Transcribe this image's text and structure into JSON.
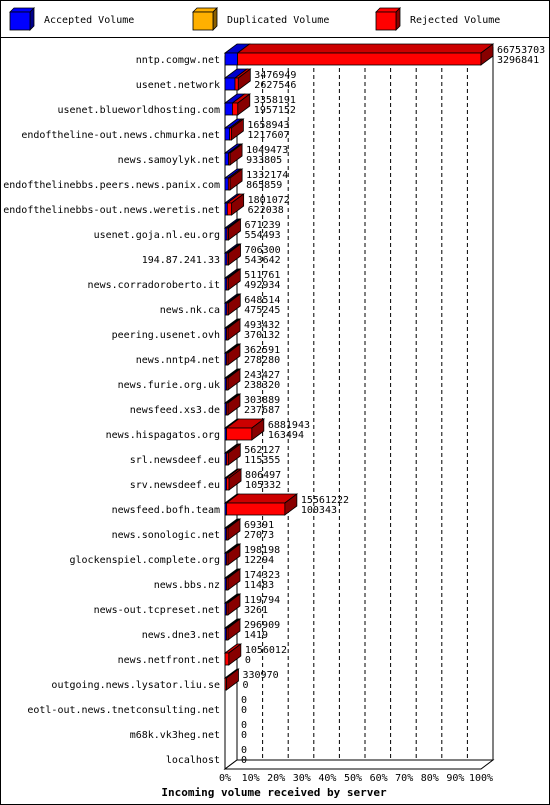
{
  "chart_data": {
    "type": "bar",
    "orientation": "horizontal",
    "style": "3d",
    "xlabel": "Incoming volume received by server",
    "xlim": [
      0,
      100
    ],
    "x_ticks": [
      "0%",
      "10%",
      "20%",
      "30%",
      "40%",
      "50%",
      "60%",
      "70%",
      "80%",
      "90%",
      "100%"
    ],
    "legend_position": "top",
    "series": [
      {
        "name": "Accepted Volume",
        "color": "#0000ff"
      },
      {
        "name": "Duplicated Volume",
        "color": "#ffb000"
      },
      {
        "name": "Rejected Volume",
        "color": "#ff0000"
      }
    ],
    "categories": [
      "nntp.comgw.net",
      "usenet.network",
      "usenet.blueworldhosting.com",
      "endoftheline-out.news.chmurka.net",
      "news.samoylyk.net",
      "endofthelinebbs.peers.news.panix.com",
      "endofthelinebbs-out.news.weretis.net",
      "usenet.goja.nl.eu.org",
      "194.87.241.33",
      "news.corradoroberto.it",
      "news.nk.ca",
      "peering.usenet.ovh",
      "news.nntp4.net",
      "news.furie.org.uk",
      "newsfeed.xs3.de",
      "news.hispagatos.org",
      "srl.newsdeef.eu",
      "srv.newsdeef.eu",
      "newsfeed.bofh.team",
      "news.sonologic.net",
      "glockenspiel.complete.org",
      "news.bbs.nz",
      "news-out.tcpreset.net",
      "news.dne3.net",
      "news.netfront.net",
      "outgoing.news.lysator.liu.se",
      "eotl-out.news.tnetconsulting.net",
      "m68k.vk3heg.net",
      "localhost"
    ],
    "rows": [
      {
        "total": "66753703",
        "accepted": "3296841",
        "pct": [
          4.9,
          0,
          95.1
        ]
      },
      {
        "total": "3476949",
        "accepted": "2627546",
        "pct": [
          3.9,
          0,
          1.3
        ]
      },
      {
        "total": "3358191",
        "accepted": "1957152",
        "pct": [
          2.9,
          0,
          2.1
        ]
      },
      {
        "total": "1658943",
        "accepted": "1217607",
        "pct": [
          1.8,
          0,
          0.7
        ]
      },
      {
        "total": "1049473",
        "accepted": "933805",
        "pct": [
          1.4,
          0,
          0.2
        ]
      },
      {
        "total": "1332174",
        "accepted": "865859",
        "pct": [
          1.3,
          0,
          0.7
        ]
      },
      {
        "total": "1801072",
        "accepted": "622038",
        "pct": [
          0.9,
          0,
          1.7
        ]
      },
      {
        "total": "671239",
        "accepted": "554493",
        "pct": [
          0.8,
          0,
          0.2
        ]
      },
      {
        "total": "706300",
        "accepted": "543642",
        "pct": [
          0.8,
          0,
          0.2
        ]
      },
      {
        "total": "511761",
        "accepted": "492934",
        "pct": [
          0.7,
          0,
          0.03
        ]
      },
      {
        "total": "648514",
        "accepted": "475245",
        "pct": [
          0.7,
          0,
          0.3
        ]
      },
      {
        "total": "493432",
        "accepted": "370132",
        "pct": [
          0.6,
          0,
          0.2
        ]
      },
      {
        "total": "362591",
        "accepted": "278280",
        "pct": [
          0.4,
          0,
          0.1
        ]
      },
      {
        "total": "243427",
        "accepted": "238320",
        "pct": [
          0.4,
          0,
          0.01
        ]
      },
      {
        "total": "303889",
        "accepted": "237687",
        "pct": [
          0.4,
          0,
          0.1
        ]
      },
      {
        "total": "6881943",
        "accepted": "163494",
        "pct": [
          0.2,
          0,
          9.9
        ]
      },
      {
        "total": "562127",
        "accepted": "115355",
        "pct": [
          0.2,
          0,
          0.7
        ]
      },
      {
        "total": "806497",
        "accepted": "105332",
        "pct": [
          0.2,
          0,
          1.0
        ]
      },
      {
        "total": "15561222",
        "accepted": "100343",
        "pct": [
          0.15,
          0,
          22.8
        ]
      },
      {
        "total": "69391",
        "accepted": "27073",
        "pct": [
          0.04,
          0,
          0.06
        ]
      },
      {
        "total": "198198",
        "accepted": "12294",
        "pct": [
          0.02,
          0,
          0.27
        ]
      },
      {
        "total": "174323",
        "accepted": "11483",
        "pct": [
          0.02,
          0,
          0.24
        ]
      },
      {
        "total": "119794",
        "accepted": "3261",
        "pct": [
          0.005,
          0,
          0.17
        ]
      },
      {
        "total": "296909",
        "accepted": "1419",
        "pct": [
          0.002,
          0,
          0.43
        ]
      },
      {
        "total": "1056012",
        "accepted": "0",
        "pct": [
          0,
          0,
          1.5
        ]
      },
      {
        "total": "330970",
        "accepted": "0",
        "pct": [
          0,
          0,
          0.5
        ]
      },
      {
        "total": "0",
        "accepted": "0",
        "pct": [
          0,
          0,
          0
        ]
      },
      {
        "total": "0",
        "accepted": "0",
        "pct": [
          0,
          0,
          0
        ]
      },
      {
        "total": "0",
        "accepted": "0",
        "pct": [
          0,
          0,
          0
        ]
      }
    ]
  }
}
